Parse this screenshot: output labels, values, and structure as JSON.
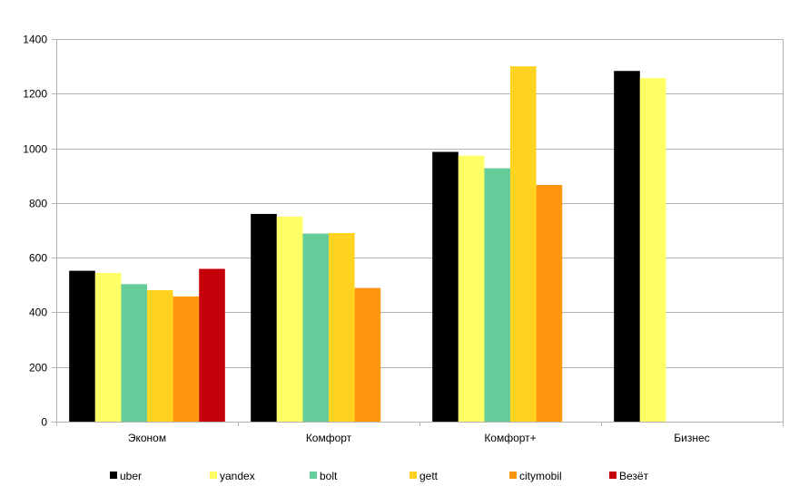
{
  "chart_data": {
    "type": "bar",
    "title": "",
    "xlabel": "",
    "ylabel": "",
    "ylim": [
      0,
      1400
    ],
    "yticks": [
      0,
      200,
      400,
      600,
      800,
      1000,
      1200,
      1400
    ],
    "grid": true,
    "legend_position": "bottom",
    "categories": [
      "Эконом",
      "Комфорт",
      "Комфорт+",
      "Бизнес"
    ],
    "series": [
      {
        "name": "uber",
        "color": "#000000",
        "values": [
          552,
          760,
          987,
          1283
        ]
      },
      {
        "name": "yandex",
        "color": "#FFFF66",
        "values": [
          544,
          750,
          973,
          1257
        ]
      },
      {
        "name": "bolt",
        "color": "#66CC99",
        "values": [
          503,
          688,
          927,
          null
        ]
      },
      {
        "name": "gett",
        "color": "#FFD320",
        "values": [
          481,
          690,
          1300,
          null
        ]
      },
      {
        "name": "citymobil",
        "color": "#FF950E",
        "values": [
          458,
          489,
          866,
          null
        ]
      },
      {
        "name": "Везёт",
        "color": "#C5000B",
        "values": [
          559,
          null,
          null,
          null
        ]
      }
    ]
  }
}
